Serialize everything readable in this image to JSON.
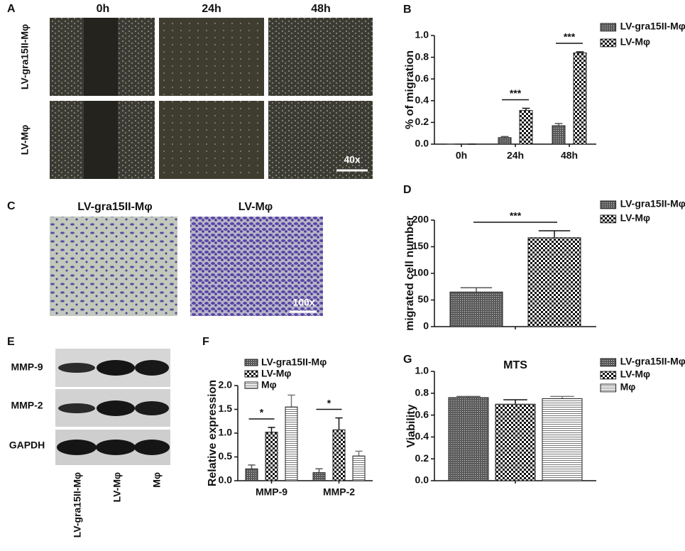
{
  "image_panels": [
    {
      "panel": "A",
      "columns": [
        "0h",
        "24h",
        "48h"
      ],
      "rows": [
        "LV-gra15II-Mφ",
        "LV-Mφ"
      ],
      "scale": "40x"
    },
    {
      "panel": "C",
      "columns": [
        "LV-gra15II-Mφ",
        "LV-Mφ"
      ],
      "scale": "100x"
    },
    {
      "panel": "E",
      "rows": [
        "MMP-9",
        "MMP-2",
        "GAPDH"
      ],
      "columns": [
        "LV-gra15II-Mφ",
        "LV-Mφ",
        "Mφ"
      ]
    }
  ],
  "chart_data": [
    {
      "type": "bar",
      "panel": "B",
      "ylabel": "% of migration",
      "categories": [
        "0h",
        "24h",
        "48h"
      ],
      "series": [
        {
          "name": "LV-gra15II-Mφ",
          "pattern": "dots",
          "color": "#555555",
          "values": [
            0,
            0.06,
            0.17
          ],
          "errors": [
            0,
            0.01,
            0.02
          ]
        },
        {
          "name": "LV-Mφ",
          "pattern": "checker",
          "color": "#111111",
          "values": [
            0,
            0.31,
            0.84
          ],
          "errors": [
            0,
            0.02,
            0.01
          ]
        }
      ],
      "ylim": [
        0,
        1
      ],
      "yticks": [
        {
          "value": 0,
          "label": "0.0"
        },
        0.2,
        0.4,
        0.6,
        0.8,
        {
          "value": 1,
          "label": "1.0"
        }
      ],
      "significance": [
        {
          "label": "***",
          "category": 1
        },
        {
          "label": "***",
          "category": 2
        }
      ]
    },
    {
      "type": "bar",
      "panel": "D",
      "ylabel": "migrated cell number",
      "categories": [
        null
      ],
      "series": [
        {
          "name": "LV-gra15II-Mφ",
          "pattern": "dots",
          "color": "#555555",
          "values": [
            65
          ],
          "errors": [
            8
          ]
        },
        {
          "name": "LV-Mφ",
          "pattern": "checker",
          "color": "#111111",
          "values": [
            167
          ],
          "errors": [
            13
          ]
        }
      ],
      "ylim": [
        0,
        200
      ],
      "yticks": [
        0,
        50,
        100,
        150,
        200
      ],
      "significance": [
        {
          "label": "***",
          "category": 0
        }
      ]
    },
    {
      "type": "bar",
      "panel": "F",
      "ylabel": "Relative expression",
      "categories": [
        "MMP-9",
        "MMP-2"
      ],
      "series": [
        {
          "name": "LV-gra15II-Mφ",
          "pattern": "dots",
          "color": "#555555",
          "values": [
            0.25,
            0.17
          ],
          "errors": [
            0.08,
            0.08
          ]
        },
        {
          "name": "LV-Mφ",
          "pattern": "checker",
          "color": "#111111",
          "values": [
            1.02,
            1.07
          ],
          "errors": [
            0.1,
            0.25
          ]
        },
        {
          "name": "Mφ",
          "pattern": "hlines",
          "color": "#777777",
          "values": [
            1.55,
            0.52
          ],
          "errors": [
            0.25,
            0.1
          ]
        }
      ],
      "ylim": [
        0,
        2
      ],
      "yticks": [
        {
          "value": 0,
          "label": "0.0"
        },
        0.5,
        {
          "value": 1,
          "label": "1.0"
        },
        1.5,
        {
          "value": 2,
          "label": "2.0"
        }
      ],
      "significance": [
        {
          "label": "*",
          "category": 0
        },
        {
          "label": "*",
          "category": 1
        }
      ]
    },
    {
      "type": "bar",
      "panel": "G",
      "title": "MTS",
      "ylabel": "Viability",
      "categories": [
        null
      ],
      "series": [
        {
          "name": "LV-gra15II-Mφ",
          "pattern": "dots",
          "color": "#555555",
          "values": [
            0.76
          ],
          "errors": [
            0.01
          ]
        },
        {
          "name": "LV-Mφ",
          "pattern": "checker",
          "color": "#111111",
          "values": [
            0.7
          ],
          "errors": [
            0.04
          ]
        },
        {
          "name": "Mφ",
          "pattern": "hlines",
          "color": "#777777",
          "values": [
            0.75
          ],
          "errors": [
            0.02
          ]
        }
      ],
      "ylim": [
        0,
        1
      ],
      "yticks": [
        {
          "value": 0,
          "label": "0.0"
        },
        0.2,
        0.4,
        0.6,
        0.8,
        {
          "value": 1,
          "label": "1.0"
        }
      ]
    }
  ]
}
